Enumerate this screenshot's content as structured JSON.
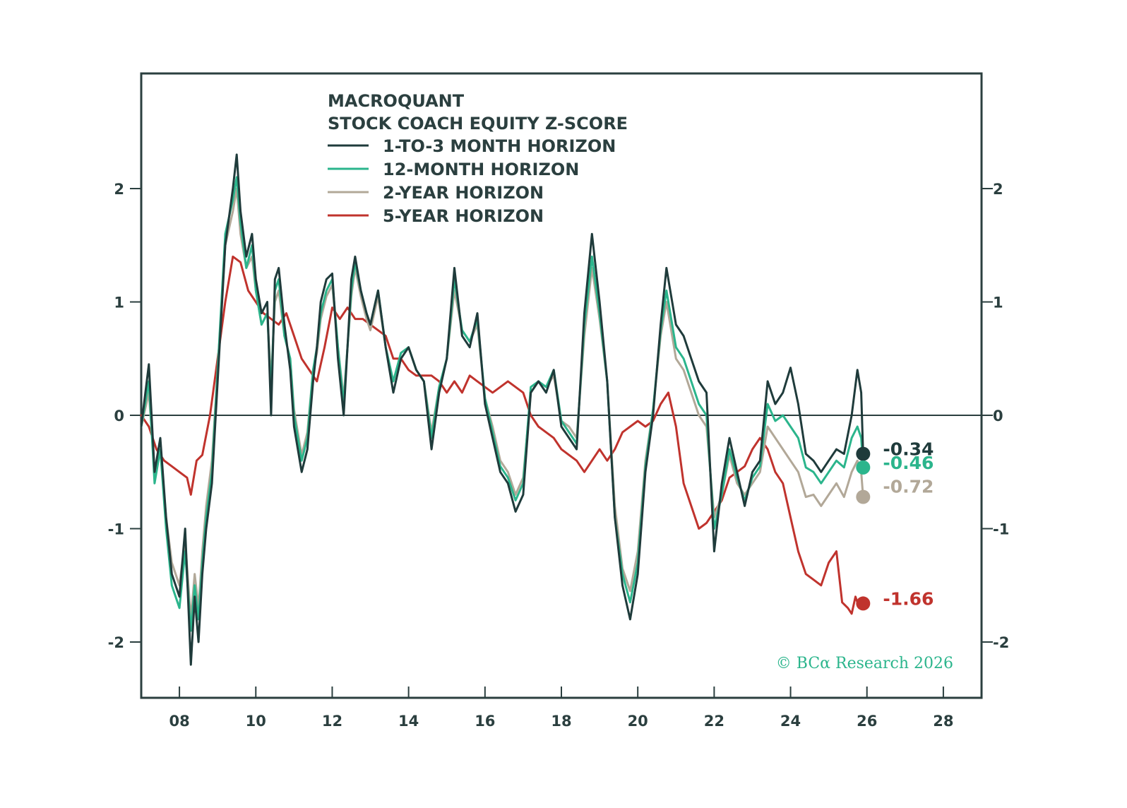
{
  "chart_data": {
    "type": "line",
    "title": "MACROQUANT",
    "subtitle": "STOCK COACH EQUITY Z-SCORE",
    "xlabel": "",
    "ylabel": "",
    "xlim": [
      2007.0,
      2029.0
    ],
    "ylim": [
      -2.5,
      3.0
    ],
    "x_ticks": [
      2008,
      2010,
      2012,
      2014,
      2016,
      2018,
      2020,
      2022,
      2024,
      2026,
      2028
    ],
    "x_tick_labels": [
      "08",
      "10",
      "12",
      "14",
      "16",
      "18",
      "20",
      "22",
      "24",
      "26",
      "28"
    ],
    "y_ticks": [
      -2,
      -1,
      0,
      1,
      2
    ],
    "y_tick_labels": [
      "-2",
      "-1",
      "0",
      "1",
      "2"
    ],
    "grid": false,
    "legend_position": "top-left",
    "copyright": "© BCα Research 2026",
    "series": [
      {
        "name": "1-TO-3 MONTH HORIZON",
        "color": "#1f3b3b",
        "end_value": -0.34,
        "end_label": "-0.34",
        "x": [
          2007.0,
          2007.2,
          2007.35,
          2007.5,
          2007.65,
          2007.8,
          2008.0,
          2008.15,
          2008.3,
          2008.4,
          2008.5,
          2008.6,
          2008.7,
          2008.85,
          2009.0,
          2009.2,
          2009.4,
          2009.5,
          2009.6,
          2009.75,
          2009.9,
          2010.0,
          2010.15,
          2010.3,
          2010.4,
          2010.5,
          2010.6,
          2010.75,
          2010.9,
          2011.0,
          2011.2,
          2011.35,
          2011.5,
          2011.6,
          2011.7,
          2011.85,
          2012.0,
          2012.15,
          2012.3,
          2012.5,
          2012.6,
          2012.75,
          2012.9,
          2013.0,
          2013.2,
          2013.4,
          2013.6,
          2013.8,
          2014.0,
          2014.2,
          2014.4,
          2014.6,
          2014.8,
          2015.0,
          2015.2,
          2015.4,
          2015.6,
          2015.8,
          2016.0,
          2016.2,
          2016.4,
          2016.6,
          2016.8,
          2017.0,
          2017.2,
          2017.4,
          2017.6,
          2017.8,
          2018.0,
          2018.2,
          2018.4,
          2018.6,
          2018.8,
          2019.0,
          2019.2,
          2019.4,
          2019.6,
          2019.8,
          2020.0,
          2020.2,
          2020.4,
          2020.6,
          2020.75,
          2020.9,
          2021.0,
          2021.2,
          2021.4,
          2021.6,
          2021.8,
          2022.0,
          2022.2,
          2022.4,
          2022.6,
          2022.8,
          2023.0,
          2023.2,
          2023.4,
          2023.6,
          2023.8,
          2024.0,
          2024.2,
          2024.4,
          2024.6,
          2024.8,
          2025.0,
          2025.2,
          2025.4,
          2025.6,
          2025.75,
          2025.85,
          2025.9
        ],
        "y": [
          -0.1,
          0.45,
          -0.5,
          -0.2,
          -0.9,
          -1.4,
          -1.6,
          -1.0,
          -2.2,
          -1.6,
          -2.0,
          -1.4,
          -1.0,
          -0.6,
          0.3,
          1.5,
          2.0,
          2.3,
          1.8,
          1.4,
          1.6,
          1.2,
          0.9,
          1.0,
          0.0,
          1.2,
          1.3,
          0.8,
          0.4,
          -0.1,
          -0.5,
          -0.3,
          0.3,
          0.6,
          1.0,
          1.2,
          1.25,
          0.5,
          0.0,
          1.2,
          1.4,
          1.1,
          0.9,
          0.8,
          1.1,
          0.6,
          0.2,
          0.5,
          0.6,
          0.4,
          0.3,
          -0.3,
          0.2,
          0.5,
          1.3,
          0.7,
          0.6,
          0.9,
          0.1,
          -0.2,
          -0.5,
          -0.6,
          -0.85,
          -0.7,
          0.2,
          0.3,
          0.2,
          0.4,
          -0.1,
          -0.2,
          -0.3,
          0.9,
          1.6,
          1.0,
          0.3,
          -0.9,
          -1.5,
          -1.8,
          -1.4,
          -0.5,
          0.0,
          0.8,
          1.3,
          1.0,
          0.8,
          0.7,
          0.5,
          0.3,
          0.2,
          -1.2,
          -0.6,
          -0.2,
          -0.5,
          -0.8,
          -0.5,
          -0.4,
          0.3,
          0.1,
          0.2,
          0.42,
          0.1,
          -0.34,
          -0.4,
          -0.5,
          -0.4,
          -0.3,
          -0.34,
          0.0,
          0.4,
          0.2,
          -0.34
        ]
      },
      {
        "name": "12-MONTH HORIZON",
        "color": "#2bb58c",
        "end_value": -0.46,
        "end_label": "-0.46",
        "x": [
          2007.0,
          2007.2,
          2007.35,
          2007.5,
          2007.65,
          2007.8,
          2008.0,
          2008.15,
          2008.3,
          2008.4,
          2008.5,
          2008.6,
          2008.7,
          2008.85,
          2009.0,
          2009.2,
          2009.4,
          2009.5,
          2009.6,
          2009.75,
          2009.9,
          2010.0,
          2010.15,
          2010.3,
          2010.4,
          2010.5,
          2010.6,
          2010.75,
          2010.9,
          2011.0,
          2011.2,
          2011.35,
          2011.5,
          2011.6,
          2011.7,
          2011.85,
          2012.0,
          2012.15,
          2012.3,
          2012.5,
          2012.6,
          2012.75,
          2012.9,
          2013.0,
          2013.2,
          2013.4,
          2013.6,
          2013.8,
          2014.0,
          2014.2,
          2014.4,
          2014.6,
          2014.8,
          2015.0,
          2015.2,
          2015.4,
          2015.6,
          2015.8,
          2016.0,
          2016.2,
          2016.4,
          2016.6,
          2016.8,
          2017.0,
          2017.2,
          2017.4,
          2017.6,
          2017.8,
          2018.0,
          2018.2,
          2018.4,
          2018.6,
          2018.8,
          2019.0,
          2019.2,
          2019.4,
          2019.6,
          2019.8,
          2020.0,
          2020.2,
          2020.4,
          2020.6,
          2020.75,
          2020.9,
          2021.0,
          2021.2,
          2021.4,
          2021.6,
          2021.8,
          2022.0,
          2022.2,
          2022.4,
          2022.6,
          2022.8,
          2023.0,
          2023.2,
          2023.4,
          2023.6,
          2023.8,
          2024.0,
          2024.2,
          2024.4,
          2024.6,
          2024.8,
          2025.0,
          2025.2,
          2025.4,
          2025.6,
          2025.75,
          2025.85,
          2025.9
        ],
        "y": [
          -0.1,
          0.3,
          -0.6,
          -0.3,
          -1.0,
          -1.5,
          -1.7,
          -1.2,
          -1.9,
          -1.5,
          -1.8,
          -1.3,
          -0.9,
          -0.5,
          0.4,
          1.6,
          1.9,
          2.1,
          1.7,
          1.3,
          1.5,
          1.1,
          0.8,
          0.9,
          0.2,
          1.1,
          1.2,
          0.7,
          0.5,
          0.0,
          -0.4,
          -0.2,
          0.4,
          0.6,
          0.9,
          1.1,
          1.2,
          0.6,
          0.1,
          1.1,
          1.35,
          1.1,
          0.9,
          0.8,
          1.1,
          0.6,
          0.3,
          0.55,
          0.6,
          0.4,
          0.3,
          -0.2,
          0.25,
          0.5,
          1.2,
          0.75,
          0.65,
          0.85,
          0.15,
          -0.15,
          -0.45,
          -0.55,
          -0.75,
          -0.6,
          0.25,
          0.3,
          0.25,
          0.4,
          -0.05,
          -0.15,
          -0.25,
          0.8,
          1.4,
          0.9,
          0.3,
          -0.9,
          -1.4,
          -1.65,
          -1.3,
          -0.45,
          0.05,
          0.75,
          1.1,
          0.8,
          0.6,
          0.5,
          0.3,
          0.1,
          0.0,
          -1.0,
          -0.7,
          -0.3,
          -0.55,
          -0.75,
          -0.55,
          -0.45,
          0.1,
          -0.05,
          0.0,
          -0.1,
          -0.2,
          -0.46,
          -0.5,
          -0.6,
          -0.5,
          -0.4,
          -0.46,
          -0.2,
          -0.1,
          -0.2,
          -0.46
        ]
      },
      {
        "name": "2-YEAR HORIZON",
        "color": "#b2a898",
        "end_value": -0.72,
        "end_label": "-0.72",
        "x": [
          2007.0,
          2007.2,
          2007.35,
          2007.5,
          2007.65,
          2007.8,
          2008.0,
          2008.15,
          2008.3,
          2008.4,
          2008.5,
          2008.6,
          2008.7,
          2008.85,
          2009.0,
          2009.2,
          2009.4,
          2009.5,
          2009.6,
          2009.75,
          2009.9,
          2010.0,
          2010.15,
          2010.3,
          2010.4,
          2010.5,
          2010.6,
          2010.75,
          2010.9,
          2011.0,
          2011.2,
          2011.35,
          2011.5,
          2011.6,
          2011.7,
          2011.85,
          2012.0,
          2012.15,
          2012.3,
          2012.5,
          2012.6,
          2012.75,
          2012.9,
          2013.0,
          2013.2,
          2013.4,
          2013.6,
          2013.8,
          2014.0,
          2014.2,
          2014.4,
          2014.6,
          2014.8,
          2015.0,
          2015.2,
          2015.4,
          2015.6,
          2015.8,
          2016.0,
          2016.2,
          2016.4,
          2016.6,
          2016.8,
          2017.0,
          2017.2,
          2017.4,
          2017.6,
          2017.8,
          2018.0,
          2018.2,
          2018.4,
          2018.6,
          2018.8,
          2019.0,
          2019.2,
          2019.4,
          2019.6,
          2019.8,
          2020.0,
          2020.2,
          2020.4,
          2020.6,
          2020.75,
          2020.9,
          2021.0,
          2021.2,
          2021.4,
          2021.6,
          2021.8,
          2022.0,
          2022.2,
          2022.4,
          2022.6,
          2022.8,
          2023.0,
          2023.2,
          2023.4,
          2023.6,
          2023.8,
          2024.0,
          2024.2,
          2024.4,
          2024.6,
          2024.8,
          2025.0,
          2025.2,
          2025.4,
          2025.6,
          2025.75,
          2025.85,
          2025.9
        ],
        "y": [
          -0.1,
          0.2,
          -0.5,
          -0.3,
          -0.9,
          -1.3,
          -1.5,
          -1.1,
          -1.8,
          -1.4,
          -1.7,
          -1.2,
          -0.8,
          -0.4,
          0.4,
          1.5,
          1.8,
          2.0,
          1.6,
          1.3,
          1.4,
          1.1,
          0.8,
          0.9,
          0.3,
          1.0,
          1.1,
          0.7,
          0.5,
          0.05,
          -0.35,
          -0.15,
          0.4,
          0.55,
          0.85,
          1.05,
          1.15,
          0.6,
          0.15,
          1.05,
          1.3,
          1.05,
          0.85,
          0.75,
          1.05,
          0.6,
          0.3,
          0.55,
          0.6,
          0.4,
          0.3,
          -0.15,
          0.25,
          0.5,
          1.1,
          0.75,
          0.65,
          0.8,
          0.15,
          -0.1,
          -0.4,
          -0.5,
          -0.7,
          -0.55,
          0.2,
          0.3,
          0.25,
          0.35,
          -0.05,
          -0.1,
          -0.2,
          0.7,
          1.3,
          0.85,
          0.3,
          -0.8,
          -1.35,
          -1.55,
          -1.2,
          -0.4,
          0.05,
          0.7,
          1.0,
          0.7,
          0.5,
          0.4,
          0.2,
          0.0,
          -0.1,
          -0.9,
          -0.7,
          -0.35,
          -0.6,
          -0.7,
          -0.6,
          -0.5,
          -0.1,
          -0.2,
          -0.3,
          -0.4,
          -0.5,
          -0.72,
          -0.7,
          -0.8,
          -0.7,
          -0.6,
          -0.72,
          -0.5,
          -0.4,
          -0.5,
          -0.72
        ]
      },
      {
        "name": "5-YEAR HORIZON",
        "color": "#c0332d",
        "end_value": -1.66,
        "end_label": "-1.66",
        "x": [
          2007.0,
          2007.2,
          2007.4,
          2007.6,
          2007.8,
          2008.0,
          2008.2,
          2008.3,
          2008.45,
          2008.6,
          2008.8,
          2009.0,
          2009.2,
          2009.4,
          2009.6,
          2009.8,
          2010.0,
          2010.2,
          2010.4,
          2010.6,
          2010.8,
          2011.0,
          2011.2,
          2011.4,
          2011.6,
          2011.8,
          2012.0,
          2012.2,
          2012.4,
          2012.6,
          2012.8,
          2013.0,
          2013.2,
          2013.4,
          2013.6,
          2013.8,
          2014.0,
          2014.2,
          2014.4,
          2014.6,
          2014.8,
          2015.0,
          2015.2,
          2015.4,
          2015.6,
          2015.8,
          2016.0,
          2016.2,
          2016.4,
          2016.6,
          2016.8,
          2017.0,
          2017.2,
          2017.4,
          2017.6,
          2017.8,
          2018.0,
          2018.2,
          2018.4,
          2018.6,
          2018.8,
          2019.0,
          2019.2,
          2019.4,
          2019.6,
          2019.8,
          2020.0,
          2020.2,
          2020.4,
          2020.6,
          2020.8,
          2021.0,
          2021.2,
          2021.4,
          2021.6,
          2021.8,
          2022.0,
          2022.2,
          2022.4,
          2022.6,
          2022.8,
          2023.0,
          2023.2,
          2023.4,
          2023.6,
          2023.8,
          2024.0,
          2024.2,
          2024.4,
          2024.6,
          2024.8,
          2025.0,
          2025.2,
          2025.35,
          2025.5,
          2025.6,
          2025.7,
          2025.8,
          2025.9
        ],
        "y": [
          0.0,
          -0.1,
          -0.3,
          -0.4,
          -0.45,
          -0.5,
          -0.55,
          -0.7,
          -0.4,
          -0.35,
          0.0,
          0.5,
          1.0,
          1.4,
          1.35,
          1.1,
          1.0,
          0.9,
          0.85,
          0.8,
          0.9,
          0.7,
          0.5,
          0.4,
          0.3,
          0.6,
          0.95,
          0.85,
          0.95,
          0.85,
          0.85,
          0.8,
          0.75,
          0.7,
          0.5,
          0.5,
          0.4,
          0.35,
          0.35,
          0.35,
          0.3,
          0.2,
          0.3,
          0.2,
          0.35,
          0.3,
          0.25,
          0.2,
          0.25,
          0.3,
          0.25,
          0.2,
          0.0,
          -0.1,
          -0.15,
          -0.2,
          -0.3,
          -0.35,
          -0.4,
          -0.5,
          -0.4,
          -0.3,
          -0.4,
          -0.3,
          -0.15,
          -0.1,
          -0.05,
          -0.1,
          -0.05,
          0.1,
          0.2,
          -0.1,
          -0.6,
          -0.8,
          -1.0,
          -0.95,
          -0.85,
          -0.75,
          -0.55,
          -0.5,
          -0.45,
          -0.3,
          -0.2,
          -0.3,
          -0.5,
          -0.6,
          -0.9,
          -1.2,
          -1.4,
          -1.45,
          -1.5,
          -1.3,
          -1.2,
          -1.65,
          -1.7,
          -1.75,
          -1.6,
          -1.7,
          -1.66
        ]
      }
    ]
  }
}
